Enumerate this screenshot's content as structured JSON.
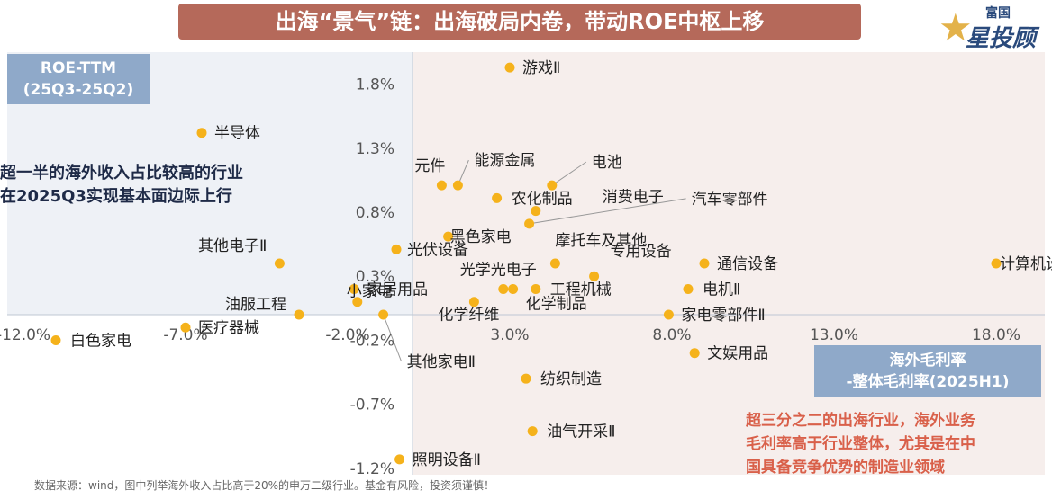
{
  "header": {
    "title": "出海“景气”链：出海破局内卷，带动ROE中枢上移"
  },
  "logo": {
    "small": "富国",
    "big": "星投顾"
  },
  "y_axis_box": {
    "line1": "ROE-TTM",
    "line2": "(25Q3-25Q2)"
  },
  "x_axis_box": {
    "line1": "海外毛利率",
    "line2": "-整体毛利率(2025H1)"
  },
  "note_left": {
    "line1": "超一半的海外收入占比较高的行业",
    "line2": "在2025Q3实现基本面边际上行"
  },
  "note_right": {
    "line1": "超三分之二的出海行业，海外业务",
    "line2": "毛利率高于行业整体，尤其是在中",
    "line3": "国具备竞争优势的制造业领域"
  },
  "source": "数据来源：wind，图中列举海外收入占比高于20%的申万二级行业。基金有风险，投资须谨慎！",
  "colors": {
    "point": "#f5b21b",
    "title_bg": "#b5695a",
    "box_bg": "#8fa9c9",
    "highlight": "#d9604a"
  },
  "chart_data": {
    "type": "scatter",
    "xlim": [
      -12.5,
      19.5
    ],
    "ylim": [
      -1.25,
      2.05
    ],
    "x_ticks": [
      -12,
      -7,
      -2,
      3,
      8,
      13,
      18
    ],
    "x_tick_labels": [
      "-12.0%",
      "-7.0%",
      "-2.0%",
      "3.0%",
      "8.0%",
      "13.0%",
      "18.0%"
    ],
    "y_ticks": [
      -1.2,
      -0.7,
      -0.2,
      0.3,
      0.8,
      1.3,
      1.8
    ],
    "y_tick_labels": [
      "-1.2%",
      "-0.7%",
      "-0.2%",
      "0.3%",
      "0.8%",
      "1.3%",
      "1.8%"
    ],
    "points": [
      {
        "name": "游戏Ⅱ",
        "x": 3.0,
        "y": 1.93
      },
      {
        "name": "半导体",
        "x": -6.5,
        "y": 1.42
      },
      {
        "name": "元件",
        "x": 0.9,
        "y": 1.01
      },
      {
        "name": "能源金属",
        "x": 1.4,
        "y": 1.01
      },
      {
        "name": "电池",
        "x": 4.3,
        "y": 1.01
      },
      {
        "name": "农化制品",
        "x": 2.6,
        "y": 0.91
      },
      {
        "name": "消费电子",
        "x": 3.8,
        "y": 0.81
      },
      {
        "name": "汽车零部件",
        "x": 3.6,
        "y": 0.71
      },
      {
        "name": "黑色家电",
        "x": 1.1,
        "y": 0.61
      },
      {
        "name": "摩托车及其他",
        "x": 4.4,
        "y": 0.4
      },
      {
        "name": "光伏设备",
        "x": -0.5,
        "y": 0.51
      },
      {
        "name": "其他电子Ⅱ",
        "x": -4.1,
        "y": 0.4
      },
      {
        "name": "通信设备",
        "x": 9.0,
        "y": 0.4
      },
      {
        "name": "计算机设备",
        "x": 18.0,
        "y": 0.4
      },
      {
        "name": "专用设备",
        "x": 5.6,
        "y": 0.3
      },
      {
        "name": "光学光电子",
        "x": 2.8,
        "y": 0.2
      },
      {
        "name": "工程机械",
        "x": 3.8,
        "y": 0.2
      },
      {
        "name": "电机Ⅱ",
        "x": 8.5,
        "y": 0.2
      },
      {
        "name": "家居用品",
        "x": -1.8,
        "y": 0.2
      },
      {
        "name": "化学纤维",
        "x": 1.9,
        "y": 0.1
      },
      {
        "name": "化学制品",
        "x": 3.1,
        "y": 0.2
      },
      {
        "name": "小家电",
        "x": -1.7,
        "y": 0.1
      },
      {
        "name": "油服工程",
        "x": -3.5,
        "y": 0.0
      },
      {
        "name": "家电零部件Ⅱ",
        "x": 7.9,
        "y": 0.0
      },
      {
        "name": "其他家电Ⅱ",
        "x": -0.9,
        "y": 0.0
      },
      {
        "name": "医疗器械",
        "x": -7.0,
        "y": -0.1
      },
      {
        "name": "白色家电",
        "x": -11.0,
        "y": -0.2
      },
      {
        "name": "文娱用品",
        "x": 8.7,
        "y": -0.3
      },
      {
        "name": "纺织制造",
        "x": 3.5,
        "y": -0.5
      },
      {
        "name": "油气开采Ⅱ",
        "x": 3.7,
        "y": -0.91
      },
      {
        "name": "照明设备Ⅱ",
        "x": -0.4,
        "y": -1.13
      }
    ]
  }
}
